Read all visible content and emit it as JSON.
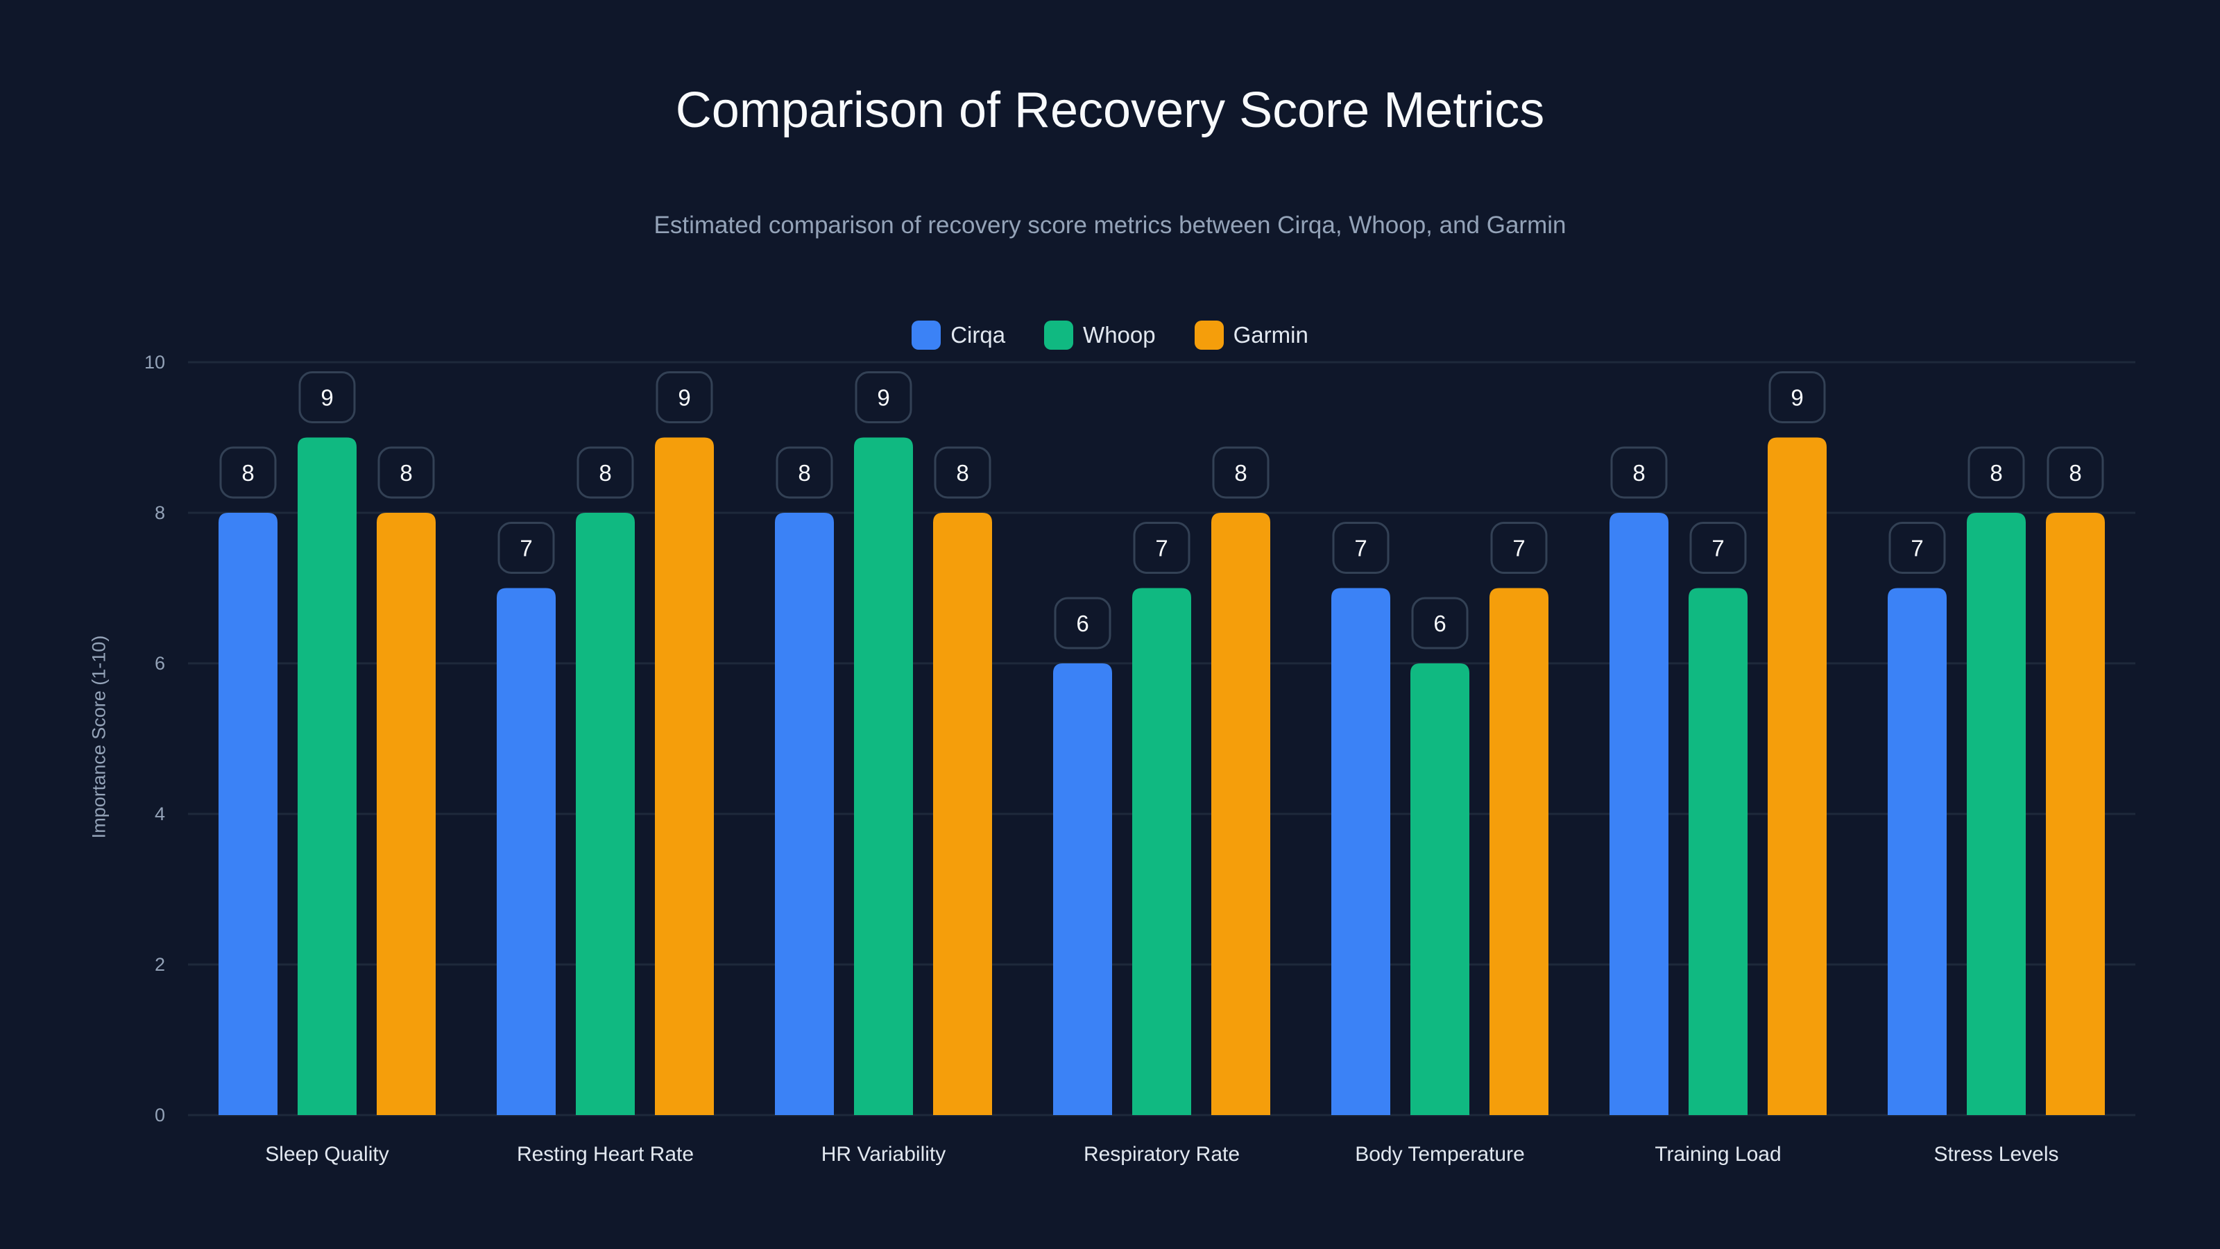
{
  "chart_data": {
    "type": "bar",
    "title": "Comparison of Recovery Score Metrics",
    "subtitle": "Estimated comparison of recovery score metrics between Cirqa, Whoop, and Garmin",
    "xlabel": "",
    "ylabel": "Importance Score (1-10)",
    "ylim": [
      0,
      10
    ],
    "yticks": [
      0,
      2,
      4,
      6,
      8,
      10
    ],
    "grid": true,
    "legend_position": "top-center",
    "categories": [
      "Sleep Quality",
      "Resting Heart Rate",
      "HR Variability",
      "Respiratory Rate",
      "Body Temperature",
      "Training Load",
      "Stress Levels"
    ],
    "series": [
      {
        "name": "Cirqa",
        "color": "#3b82f6",
        "values": [
          8,
          7,
          8,
          6,
          7,
          8,
          7
        ]
      },
      {
        "name": "Whoop",
        "color": "#10b981",
        "values": [
          9,
          8,
          9,
          7,
          6,
          7,
          8
        ]
      },
      {
        "name": "Garmin",
        "color": "#f59e0b",
        "values": [
          8,
          9,
          8,
          8,
          7,
          9,
          8
        ]
      }
    ]
  }
}
